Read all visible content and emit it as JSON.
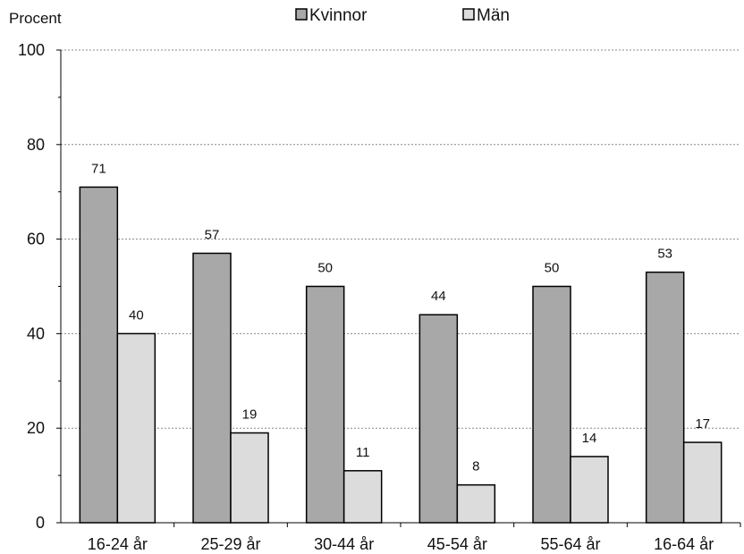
{
  "chart_data": {
    "type": "bar",
    "ylabel": "Procent",
    "ylim": [
      0,
      100
    ],
    "yticks": [
      0,
      20,
      40,
      60,
      80,
      100
    ],
    "grid": true,
    "legend_position": "top",
    "categories": [
      "16-24 år",
      "25-29 år",
      "30-44 år",
      "45-54 år",
      "55-64 år",
      "16-64 år"
    ],
    "series": [
      {
        "name": "Kvinnor",
        "color": "#a8a8a8",
        "values": [
          71,
          57,
          50,
          44,
          50,
          53
        ],
        "labels": [
          "71",
          "57",
          "50",
          "44",
          "50",
          "53"
        ]
      },
      {
        "name": "Män",
        "color": "#dcdcdc",
        "values": [
          40,
          19,
          11,
          8,
          14,
          17
        ],
        "labels": [
          "40",
          "19",
          "11",
          "8",
          "14",
          "17"
        ]
      }
    ]
  }
}
